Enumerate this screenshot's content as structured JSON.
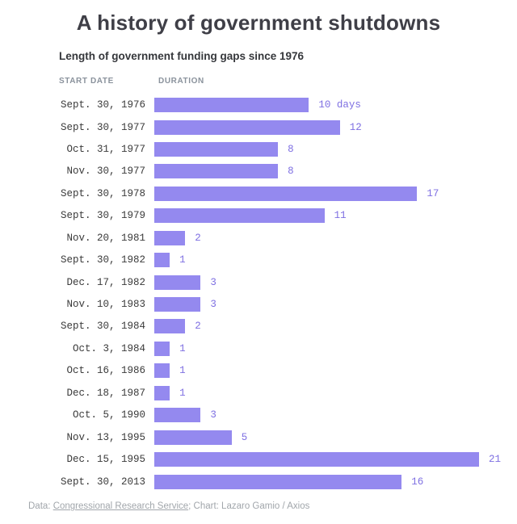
{
  "page": {
    "title": "A history of government shutdowns",
    "subtitle": "Length of government funding gaps since 1976",
    "columns": {
      "start_date": "START DATE",
      "duration": "DURATION"
    },
    "footer": {
      "prefix": "Data: ",
      "link": "Congressional Research Service",
      "suffix": "; Chart: Lazaro Gamio / Axios"
    }
  },
  "colors": {
    "bar": "#9489ef",
    "value_label": "#7e6fe2",
    "title": "#3f3f47",
    "date_text": "#3a3a3a",
    "column_header": "#8a929c",
    "footer_text": "#a1a6ab",
    "background": "#ffffff"
  },
  "chart_data": {
    "type": "bar",
    "orientation": "horizontal",
    "title": "A history of government shutdowns",
    "subtitle": "Length of government funding gaps since 1976",
    "unit": "days",
    "xlim": [
      0,
      21
    ],
    "grid": false,
    "legend": false,
    "categories": [
      "Sept. 30, 1976",
      "Sept. 30, 1977",
      "Oct. 31, 1977",
      "Nov. 30, 1977",
      "Sept. 30, 1978",
      "Sept. 30, 1979",
      "Nov. 20, 1981",
      "Sept. 30, 1982",
      "Dec. 17, 1982",
      "Nov. 10, 1983",
      "Sept. 30, 1984",
      "Oct. 3, 1984",
      "Oct. 16, 1986",
      "Dec. 18, 1987",
      "Oct. 5, 1990",
      "Nov. 13, 1995",
      "Dec. 15, 1995",
      "Sept. 30, 2013"
    ],
    "values": [
      10,
      12,
      8,
      8,
      17,
      11,
      2,
      1,
      3,
      3,
      2,
      1,
      1,
      1,
      3,
      5,
      21,
      16
    ],
    "value_labels": [
      "10 days",
      "12",
      "8",
      "8",
      "17",
      "11",
      "2",
      "1",
      "3",
      "3",
      "2",
      "1",
      "1",
      "1",
      "3",
      "5",
      "21",
      "16"
    ]
  }
}
